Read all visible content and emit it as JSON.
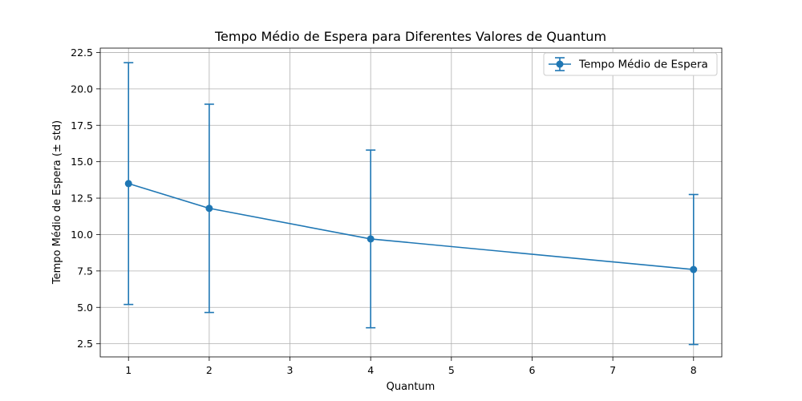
{
  "chart_data": {
    "type": "line",
    "title": "Tempo Médio de Espera para Diferentes Valores de Quantum",
    "xlabel": "Quantum",
    "ylabel": "Tempo Médio de Espera (± std)",
    "xlim": [
      0.65,
      8.35
    ],
    "ylim": [
      1.6,
      22.8
    ],
    "grid": true,
    "legend_position": "top-right",
    "x_ticks": [
      1,
      2,
      3,
      4,
      5,
      6,
      7,
      8
    ],
    "y_ticks": [
      2.5,
      5.0,
      7.5,
      10.0,
      12.5,
      15.0,
      17.5,
      20.0,
      22.5
    ],
    "x_tick_labels": [
      "1",
      "2",
      "3",
      "4",
      "5",
      "6",
      "7",
      "8"
    ],
    "y_tick_labels": [
      "2.5",
      "5.0",
      "7.5",
      "10.0",
      "12.5",
      "15.0",
      "17.5",
      "20.0",
      "22.5"
    ],
    "series": [
      {
        "name": "Tempo Médio de Espera",
        "color": "#1f77b4",
        "x": [
          1,
          2,
          4,
          8
        ],
        "y": [
          13.5,
          11.8,
          9.7,
          7.6
        ],
        "yerr": [
          8.3,
          7.15,
          6.1,
          5.15
        ]
      }
    ]
  }
}
